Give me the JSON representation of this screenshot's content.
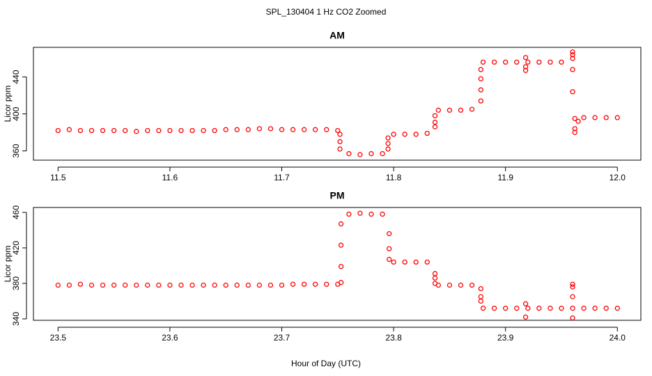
{
  "title": "SPL_130404  1 Hz CO2 Zoomed",
  "xlabel": "Hour of Day (UTC)",
  "chart_data": [
    {
      "type": "scatter",
      "title": "AM",
      "ylabel": "Licor ppm",
      "color": "#ff0000",
      "xlim": [
        11.478,
        12.021
      ],
      "ylim": [
        350,
        472
      ],
      "xticks": [
        11.5,
        11.6,
        11.7,
        11.8,
        11.9,
        {
          "value": 12,
          "label": "12.0"
        }
      ],
      "yticks": [
        360,
        400,
        440
      ],
      "x": [
        11.5,
        11.51,
        11.52,
        11.53,
        11.54,
        11.55,
        11.56,
        11.57,
        11.58,
        11.59,
        11.6,
        11.61,
        11.62,
        11.63,
        11.64,
        11.65,
        11.66,
        11.67,
        11.68,
        11.69,
        11.7,
        11.71,
        11.72,
        11.73,
        11.74,
        11.75,
        11.752,
        11.752,
        11.752,
        11.76,
        11.77,
        11.78,
        11.79,
        11.795,
        11.795,
        11.795,
        11.8,
        11.81,
        11.82,
        11.83,
        11.837,
        11.837,
        11.837,
        11.84,
        11.85,
        11.86,
        11.87,
        11.878,
        11.878,
        11.878,
        11.878,
        11.88,
        11.89,
        11.9,
        11.91,
        11.92,
        11.93,
        11.94,
        11.95,
        11.918,
        11.918,
        11.918,
        11.96,
        11.96,
        11.96,
        11.96,
        11.96,
        11.962,
        11.962,
        11.962,
        11.965,
        11.97,
        11.98,
        11.99,
        12.0
      ],
      "values": [
        382,
        383,
        382,
        382,
        382,
        382,
        382,
        381,
        382,
        382,
        382,
        382,
        382,
        382,
        382,
        383,
        383,
        383,
        384,
        384,
        383,
        383,
        383,
        383,
        383,
        382,
        378,
        370,
        362,
        357,
        356,
        357,
        357,
        362,
        368,
        374,
        378,
        378,
        378,
        379,
        386,
        391,
        398,
        404,
        404,
        404,
        405,
        414,
        426,
        438,
        448,
        456,
        456,
        456,
        456,
        456,
        456,
        456,
        456,
        447,
        451,
        461,
        467,
        464,
        460,
        448,
        424,
        395,
        384,
        380,
        392,
        396,
        396,
        396,
        396
      ]
    },
    {
      "type": "scatter",
      "title": "PM",
      "ylabel": "Licor ppm",
      "color": "#ff0000",
      "xlim": [
        23.478,
        24.021
      ],
      "ylim": [
        338.4,
        465.5
      ],
      "xticks": [
        23.5,
        23.6,
        23.7,
        23.8,
        23.9,
        {
          "value": 24,
          "label": "24.0"
        }
      ],
      "yticks": [
        340,
        380,
        420,
        460
      ],
      "x": [
        23.5,
        23.51,
        23.52,
        23.53,
        23.54,
        23.55,
        23.56,
        23.57,
        23.58,
        23.59,
        23.6,
        23.61,
        23.62,
        23.63,
        23.64,
        23.65,
        23.66,
        23.67,
        23.68,
        23.69,
        23.7,
        23.71,
        23.72,
        23.73,
        23.74,
        23.75,
        23.753,
        23.753,
        23.753,
        23.753,
        23.76,
        23.77,
        23.78,
        23.79,
        23.796,
        23.796,
        23.796,
        23.8,
        23.81,
        23.82,
        23.83,
        23.837,
        23.837,
        23.837,
        23.84,
        23.85,
        23.86,
        23.87,
        23.878,
        23.878,
        23.878,
        23.88,
        23.89,
        23.9,
        23.91,
        23.92,
        23.93,
        23.94,
        23.95,
        23.96,
        23.97,
        23.98,
        23.99,
        24.0,
        23.918,
        23.918,
        23.96,
        23.96,
        23.96,
        23.96
      ],
      "values": [
        378,
        378,
        379,
        378,
        378,
        378,
        378,
        378,
        378,
        378,
        378,
        378,
        378,
        378,
        378,
        378,
        378,
        378,
        378,
        378,
        378,
        379,
        379,
        379,
        379,
        379,
        381,
        399,
        423,
        447,
        458,
        459,
        458,
        458,
        436,
        419,
        407,
        404,
        404,
        404,
        404,
        391,
        386,
        380,
        378,
        378,
        378,
        378,
        374,
        365,
        360,
        352,
        352,
        352,
        352,
        352,
        352,
        352,
        352,
        352,
        352,
        352,
        352,
        352,
        357,
        342,
        379,
        376,
        365,
        341
      ]
    }
  ]
}
